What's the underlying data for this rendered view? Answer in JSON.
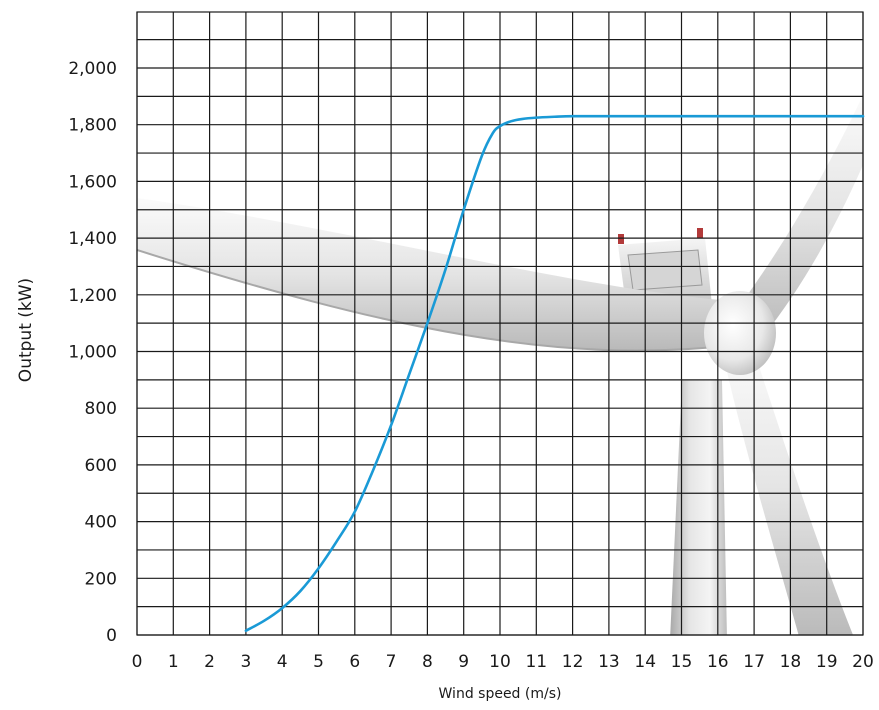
{
  "chart_data": {
    "type": "line",
    "title": "",
    "xlabel": "Wind speed (m/s)",
    "ylabel": "Output (kW)",
    "xlim": [
      0,
      20
    ],
    "ylim": [
      0,
      2200
    ],
    "grid": true,
    "x_ticks": [
      0,
      1,
      2,
      3,
      4,
      5,
      6,
      7,
      8,
      9,
      10,
      11,
      12,
      13,
      14,
      15,
      16,
      17,
      18,
      19,
      20
    ],
    "x_tick_labels": [
      "0",
      "1",
      "2",
      "3",
      "4",
      "5",
      "6",
      "7",
      "8",
      "9",
      "10",
      "11",
      "12",
      "13",
      "14",
      "15",
      "16",
      "17",
      "18",
      "19",
      "20"
    ],
    "y_ticks": [
      0,
      200,
      400,
      600,
      800,
      1000,
      1200,
      1400,
      1600,
      1800,
      2000
    ],
    "y_tick_labels": [
      "0",
      "200",
      "400",
      "600",
      "800",
      "1,000",
      "1,200",
      "1,400",
      "1,600",
      "1,800",
      "2,000"
    ],
    "series": [
      {
        "color": "#1a9ad6",
        "x": [
          3,
          3.5,
          4,
          4.5,
          5,
          5.5,
          6,
          6.5,
          7,
          7.5,
          8,
          8.5,
          9,
          9.5,
          9.8,
          10,
          10.3,
          10.6,
          11,
          11.5,
          12,
          13,
          14,
          15,
          16,
          17,
          18,
          19,
          20
        ],
        "y": [
          15,
          50,
          95,
          155,
          235,
          330,
          435,
          580,
          740,
          920,
          1100,
          1290,
          1500,
          1690,
          1770,
          1795,
          1812,
          1820,
          1825,
          1828,
          1830,
          1830,
          1830,
          1830,
          1830,
          1830,
          1830,
          1830,
          1830
        ]
      }
    ],
    "background_image": "wind-turbine",
    "colors": {
      "grid": "#1a1a1a",
      "text": "#1a1a1a",
      "turbine": "#f2f2f2"
    }
  }
}
